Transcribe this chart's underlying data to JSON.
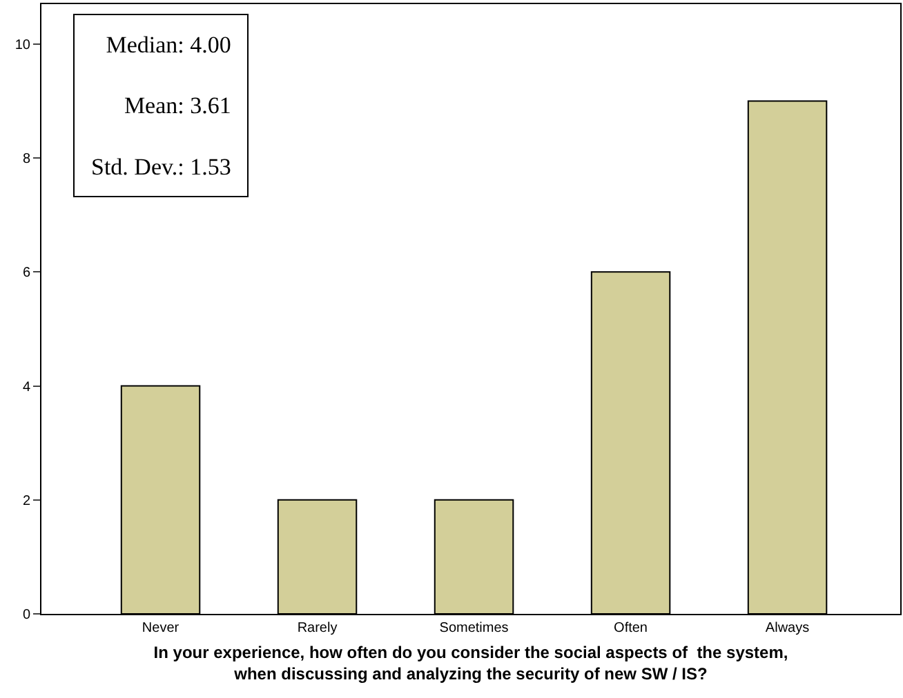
{
  "chart_data": {
    "type": "bar",
    "xlabel": "In your experience, how often do you consider the social aspects of  the system,\nwhen discussing and analyzing the security of new SW / IS?",
    "categories": [
      "Never",
      "Rarely",
      "Sometimes",
      "Often",
      "Always"
    ],
    "values": [
      4,
      2,
      2,
      6,
      9
    ],
    "color": "#d3cf99",
    "ylim": [
      0,
      10.7
    ],
    "yticks": [
      0,
      2,
      4,
      6,
      8,
      10
    ],
    "grid": false,
    "legend": false,
    "annotations": [
      "Median: 4.00",
      "Mean: 3.61",
      "Std. Dev.: 1.53"
    ]
  }
}
